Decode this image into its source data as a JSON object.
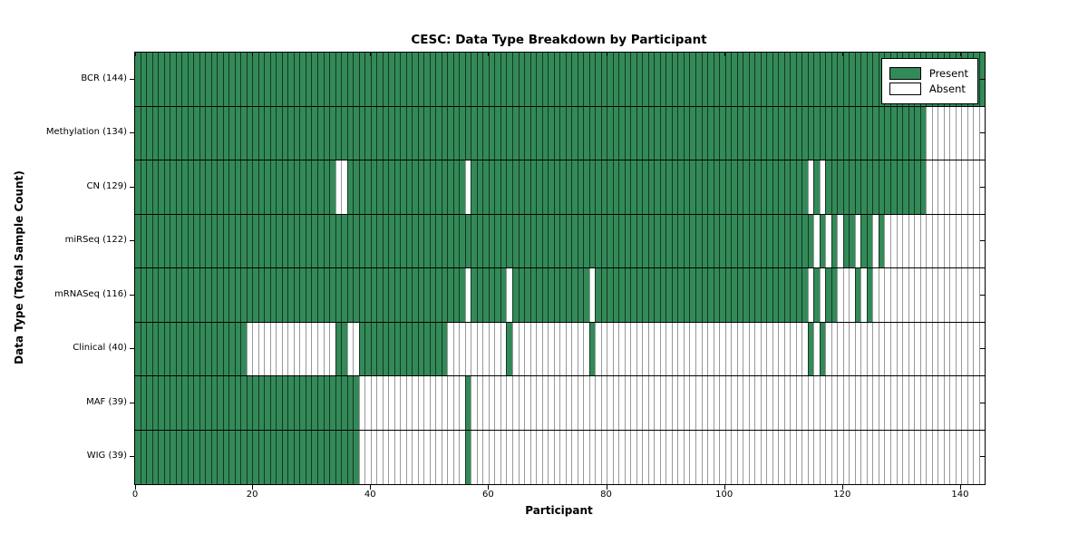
{
  "chart_data": {
    "type": "heatmap",
    "title": "CESC: Data Type Breakdown by Participant",
    "xlabel": "Participant",
    "ylabel": "Data Type (Total Sample Count)",
    "n_participants": 144,
    "x_ticks": [
      0,
      20,
      40,
      60,
      80,
      100,
      120,
      140
    ],
    "present_color": "#338a58",
    "absent_color": "#ffffff",
    "legend": [
      {
        "label": "Present",
        "color": "#338a58"
      },
      {
        "label": "Absent",
        "color": "#ffffff"
      }
    ],
    "legend_position": "upper right",
    "grid": "row-separators",
    "rows": [
      {
        "name": "bcr",
        "label": "BCR (144)",
        "total": 144,
        "absent_ranges": []
      },
      {
        "name": "methylation",
        "label": "Methylation (134)",
        "total": 134,
        "absent_ranges": [
          [
            134,
            143
          ]
        ]
      },
      {
        "name": "cn",
        "label": "CN (129)",
        "total": 129,
        "absent_ranges": [
          [
            34,
            35
          ],
          [
            56,
            56
          ],
          [
            114,
            114
          ],
          [
            116,
            116
          ],
          [
            134,
            143
          ]
        ]
      },
      {
        "name": "mirseq",
        "label": "miRSeq (122)",
        "total": 122,
        "absent_ranges": [
          [
            115,
            115
          ],
          [
            117,
            117
          ],
          [
            119,
            119
          ],
          [
            122,
            122
          ],
          [
            125,
            125
          ],
          [
            127,
            143
          ]
        ]
      },
      {
        "name": "mrnaseq",
        "label": "mRNASeq (116)",
        "total": 116,
        "absent_ranges": [
          [
            56,
            56
          ],
          [
            63,
            63
          ],
          [
            77,
            77
          ],
          [
            114,
            114
          ],
          [
            116,
            116
          ],
          [
            119,
            121
          ],
          [
            123,
            123
          ],
          [
            125,
            143
          ]
        ]
      },
      {
        "name": "clinical",
        "label": "Clinical (40)",
        "total": 40,
        "absent_ranges": [
          [
            19,
            33
          ],
          [
            36,
            37
          ],
          [
            53,
            62
          ],
          [
            64,
            76
          ],
          [
            78,
            113
          ],
          [
            115,
            115
          ],
          [
            117,
            143
          ]
        ]
      },
      {
        "name": "maf",
        "label": "MAF (39)",
        "total": 39,
        "absent_ranges": [
          [
            38,
            55
          ],
          [
            57,
            143
          ]
        ]
      },
      {
        "name": "wig",
        "label": "WIG (39)",
        "total": 39,
        "absent_ranges": [
          [
            38,
            55
          ],
          [
            57,
            143
          ]
        ]
      }
    ]
  }
}
